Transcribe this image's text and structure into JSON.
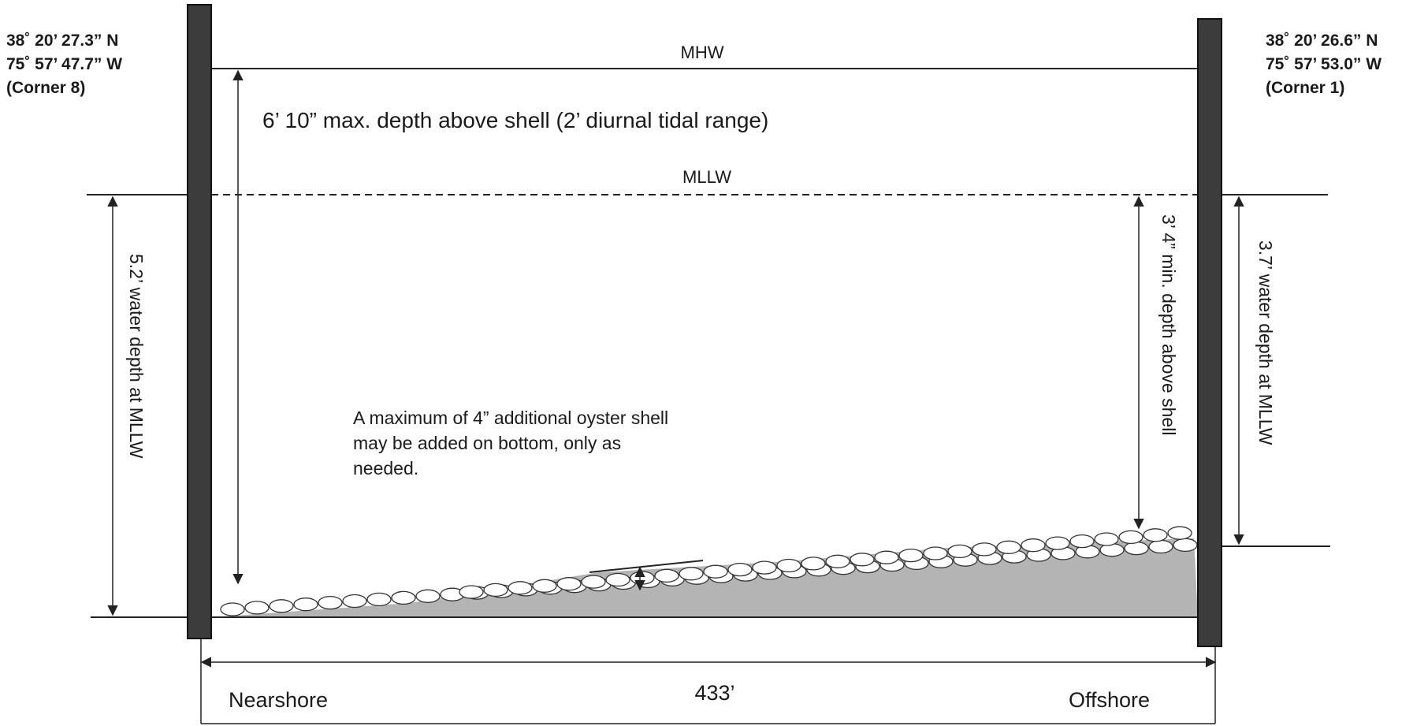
{
  "left_coords": {
    "lat": "38˚ 20’ 27.3” N",
    "lon": "75˚ 57’ 47.7” W",
    "corner": "(Corner 8)"
  },
  "right_coords": {
    "lat": "38˚ 20’ 26.6” N",
    "lon": "75˚ 57’ 53.0” W",
    "corner": "(Corner 1)"
  },
  "levels": {
    "mhw": "MHW",
    "mllw": "MLLW"
  },
  "annotations": {
    "max_depth": "6’ 10” max. depth above shell (2’ diurnal tidal range)",
    "min_depth": "3’ 4” min. depth above shell",
    "left_water_depth": "5.2’ water depth at MLLW",
    "right_water_depth": "3.7’ water depth at MLLW",
    "shell_note": [
      "A maximum of 4” additional oyster shell",
      "may be added on bottom, only as",
      "needed."
    ]
  },
  "span": {
    "length": "433’",
    "left_end": "Nearshore",
    "right_end": "Offshore"
  },
  "colors": {
    "post": "#3c3c3c",
    "fill_gray": "#b4b4b4",
    "line": "#222222"
  }
}
